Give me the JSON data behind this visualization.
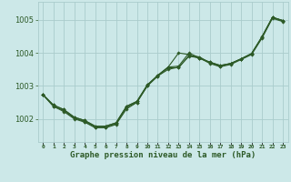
{
  "title": "Graphe pression niveau de la mer (hPa)",
  "background_color": "#cce8e8",
  "grid_color": "#aacccc",
  "line_color": "#2d5a27",
  "tick_color": "#2d5a27",
  "x_labels": [
    "0",
    "1",
    "2",
    "3",
    "4",
    "5",
    "6",
    "7",
    "8",
    "9",
    "10",
    "11",
    "12",
    "13",
    "14",
    "15",
    "16",
    "17",
    "18",
    "19",
    "20",
    "21",
    "22",
    "23"
  ],
  "y_ticks": [
    1002,
    1003,
    1004,
    1005
  ],
  "ylim": [
    1001.3,
    1005.55
  ],
  "xlim": [
    -0.5,
    23.5
  ],
  "series": [
    [
      1002.73,
      1002.42,
      1002.28,
      1002.05,
      1001.95,
      1001.78,
      1001.78,
      1001.88,
      1002.38,
      1002.53,
      1003.03,
      1003.32,
      1003.57,
      1004.0,
      1003.95,
      1003.83,
      1003.72,
      1003.62,
      1003.68,
      1003.82,
      1003.98,
      1004.48,
      1005.08,
      1004.98
    ],
    [
      1002.73,
      1002.42,
      1002.28,
      1002.05,
      1001.95,
      1001.78,
      1001.78,
      1001.88,
      1002.38,
      1002.53,
      1003.03,
      1003.32,
      1003.57,
      1003.6,
      1004.0,
      1003.85,
      1003.72,
      1003.62,
      1003.68,
      1003.82,
      1003.98,
      1004.5,
      1005.08,
      1004.98
    ],
    [
      1002.73,
      1002.38,
      1002.25,
      1002.02,
      1001.92,
      1001.75,
      1001.75,
      1001.85,
      1002.35,
      1002.5,
      1003.0,
      1003.3,
      1003.55,
      1003.55,
      1003.92,
      1003.88,
      1003.7,
      1003.6,
      1003.68,
      1003.82,
      1003.98,
      1004.48,
      1005.08,
      1004.98
    ],
    [
      1002.73,
      1002.38,
      1002.22,
      1002.0,
      1001.9,
      1001.73,
      1001.73,
      1001.83,
      1002.3,
      1002.5,
      1003.0,
      1003.3,
      1003.5,
      1003.57,
      1003.9,
      1003.85,
      1003.68,
      1003.58,
      1003.65,
      1003.8,
      1003.95,
      1004.45,
      1005.05,
      1004.95
    ]
  ]
}
